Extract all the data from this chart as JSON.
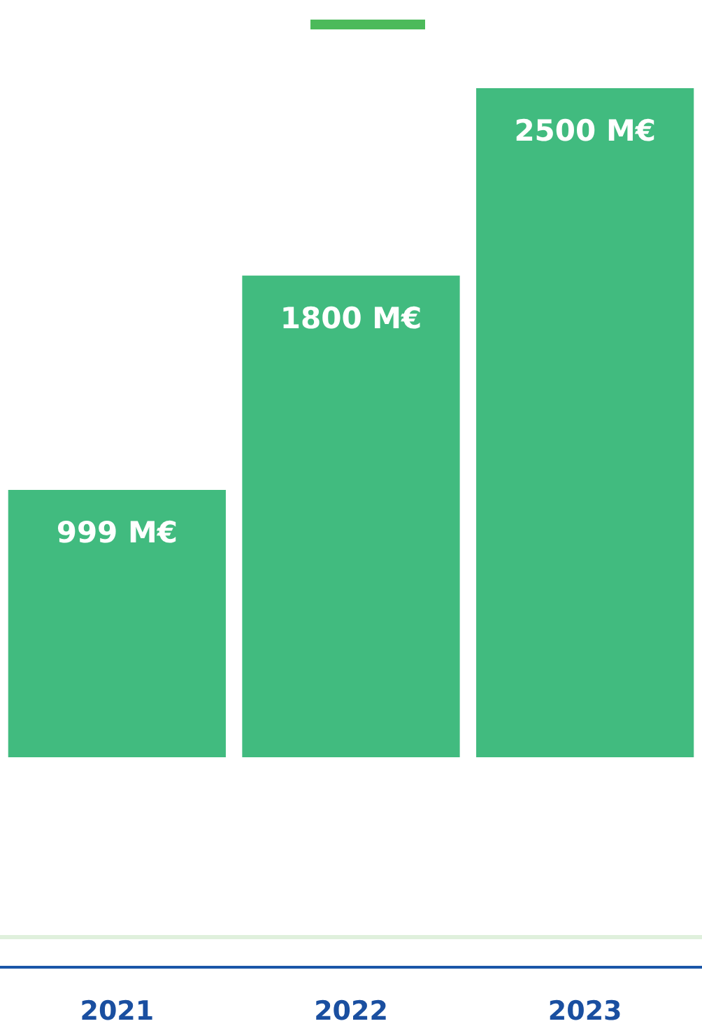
{
  "chart_data": {
    "type": "bar",
    "categories": [
      "2021",
      "2022",
      "2023"
    ],
    "values": [
      999,
      1800,
      2500
    ],
    "color": "#41bb7f",
    "value_labels": [
      "999 M€",
      "1800 M€",
      "2500 M€"
    ]
  }
}
